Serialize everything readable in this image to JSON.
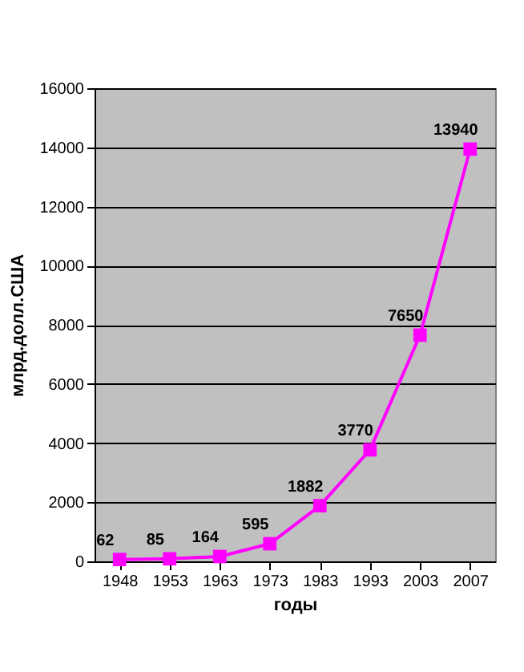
{
  "chart_data": {
    "type": "line",
    "xlabel": "годы",
    "ylabel": "млрд.долл.США",
    "categories": [
      "1948",
      "1953",
      "1963",
      "1973",
      "1983",
      "1993",
      "2003",
      "2007"
    ],
    "series": [
      {
        "color": "#ff00ff",
        "values": [
          62,
          85,
          164,
          595,
          1882,
          3770,
          7650,
          13940
        ]
      }
    ],
    "ylim": [
      0,
      16000
    ],
    "yticks": [
      0,
      2000,
      4000,
      6000,
      8000,
      10000,
      12000,
      14000,
      16000
    ],
    "grid": "y",
    "marker": "square",
    "line_style": "solid",
    "data_labels": true,
    "legend": false
  }
}
